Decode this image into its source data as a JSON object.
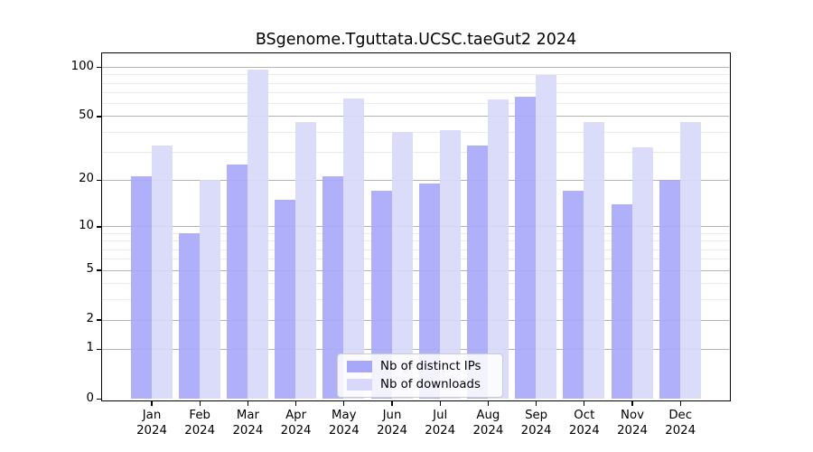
{
  "chart_data": {
    "type": "bar",
    "title": "BSgenome.Tguttata.UCSC.taeGut2 2024",
    "categories": [
      "Jan 2024",
      "Feb 2024",
      "Mar 2024",
      "Apr 2024",
      "May 2024",
      "Jun 2024",
      "Jul 2024",
      "Aug 2024",
      "Sep 2024",
      "Oct 2024",
      "Nov 2024",
      "Dec 2024"
    ],
    "series": [
      {
        "name": "Nb of distinct IPs",
        "values": [
          21,
          9,
          25,
          15,
          21,
          17,
          19,
          33,
          66,
          17,
          14,
          20
        ],
        "color": "#a8a8fa"
      },
      {
        "name": "Nb of downloads",
        "values": [
          33,
          20,
          96,
          46,
          64,
          40,
          41,
          63,
          89,
          46,
          32,
          46
        ],
        "color": "#d8d8fa"
      }
    ],
    "xlabel": "",
    "ylabel": "",
    "y_scale": "log1p",
    "y_major_ticks": [
      0,
      1,
      2,
      5,
      10,
      20,
      50,
      100
    ],
    "y_minor_gridlines": [
      3,
      4,
      6,
      7,
      8,
      9,
      30,
      40,
      60,
      70,
      80,
      90
    ],
    "ylim": [
      0,
      122
    ],
    "grid": true,
    "legend_position": "lower center"
  },
  "colors": {
    "ips_bar": "#a8a8fa",
    "downloads_bar": "#d8d8fa",
    "major_grid": "#b3b3b3",
    "minor_grid": "#eaeaea",
    "axis": "#000000",
    "background": "#ffffff"
  }
}
